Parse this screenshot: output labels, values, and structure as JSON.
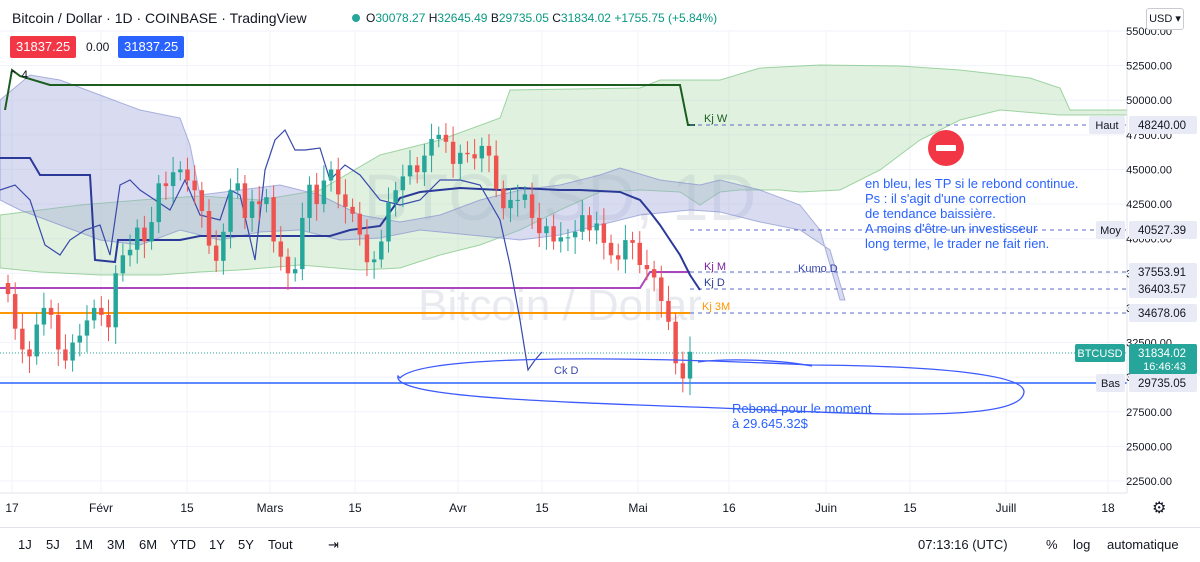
{
  "header": {
    "title": "Bitcoin / Dollar · 1D · COINBASE · TradingView",
    "ohlc": [
      {
        "label": "O",
        "value": "30078.27"
      },
      {
        "label": "H",
        "value": "32645.49"
      },
      {
        "label": "B",
        "value": "29735.05"
      },
      {
        "label": "C",
        "value": "31834.02"
      },
      {
        "label": "",
        "value": "+1755.75 (+5.84%)"
      }
    ],
    "sell_price": "31837.25",
    "spread": "0.00",
    "buy_price": "31837.25",
    "indicator_count": "4",
    "currency": "USD"
  },
  "watermark": {
    "symbol": "BTCUSD, 1D",
    "name": "Bitcoin / Dollar"
  },
  "price_axis": {
    "ticks": [
      "55000.00",
      "52500.00",
      "50000.00",
      "47500.00",
      "45000.00",
      "42500.00",
      "40000.00",
      "37500.00",
      "35000.00",
      "32500.00",
      "30000.00",
      "27500.00",
      "25000.00",
      "22500.00"
    ],
    "labels": [
      {
        "tag": "Haut",
        "value": "48240.00",
        "color": "#e8eaf6",
        "text": "#131722"
      },
      {
        "tag": "Moy",
        "value": "40527.39",
        "color": "#e8eaf6",
        "text": "#131722"
      },
      {
        "tag": "",
        "value": "37553.91",
        "color": "#e8eaf6",
        "text": "#131722"
      },
      {
        "tag": "",
        "value": "36403.57",
        "color": "#e8eaf6",
        "text": "#131722"
      },
      {
        "tag": "",
        "value": "34678.06",
        "color": "#e8eaf6",
        "text": "#131722"
      },
      {
        "tag": "BTCUSD",
        "value": "31834.02",
        "sub": "16:46:43",
        "color": "#26a69a",
        "text": "#ffffff"
      },
      {
        "tag": "Bas",
        "value": "29735.05",
        "color": "#e8eaf6",
        "text": "#131722"
      }
    ]
  },
  "time_axis": {
    "ticks": [
      "17",
      "Févr",
      "15",
      "Mars",
      "15",
      "Avr",
      "15",
      "Mai",
      "16",
      "Juin",
      "15",
      "Juill",
      "18"
    ]
  },
  "annotations": {
    "kj_w": "Kj W",
    "kj_m": "Kj M",
    "kj_d": "Kj D",
    "kj_3m": "Kj 3M",
    "kumo_d": "Kumo D",
    "ck_d": "Ck D",
    "note_main": "en bleu, les TP si le rebond continue.\nPs : il s'agit d'une correction\nde tendance baissière.\nA moins d'être un investisseur\nlong terme, le trader ne fait rien.",
    "note_rebound": "Rebond pour le moment\nà 29.645.32$"
  },
  "bottom_bar": {
    "timeframes": [
      "1J",
      "5J",
      "1M",
      "3M",
      "6M",
      "YTD",
      "1Y",
      "5Y",
      "Tout"
    ],
    "clock": "07:13:16 (UTC)",
    "percent": "%",
    "log": "log",
    "auto": "automatique"
  },
  "colors": {
    "up": "#26a69a",
    "down": "#ef5350",
    "kijun_blue": "#2b3a99",
    "kj_w": "#1b5e20",
    "kj_m": "#ab47bc",
    "kj_3m": "#ff9800",
    "bottom_line": "#2962ff",
    "cloud_green": "#a5d6a7",
    "cloud_blue": "#9fa8da"
  },
  "chart_data": {
    "type": "candlestick",
    "symbol": "BTCUSD",
    "timeframe": "1D",
    "ylim": [
      22500,
      55000
    ],
    "horizontal_levels": {
      "Haut": 48240.0,
      "Moy": 40527.39,
      "Kj M": 37553.91,
      "Kj D": 36403.57,
      "Kj 3M": 34678.06,
      "Last": 31834.02,
      "Bas": 29735.05
    },
    "closes": [
      36000,
      33500,
      32000,
      31500,
      33800,
      35000,
      34500,
      32000,
      31200,
      32500,
      33000,
      34100,
      35000,
      34500,
      33600,
      37500,
      38800,
      39200,
      40800,
      39800,
      41200,
      44000,
      43800,
      44800,
      45000,
      44200,
      43500,
      42000,
      39500,
      38400,
      40500,
      43500,
      44000,
      41500,
      42700,
      42500,
      43000,
      39800,
      38700,
      37500,
      37800,
      41500,
      43900,
      42500,
      44200,
      45000,
      43200,
      42300,
      41800,
      40300,
      38300,
      38500,
      39800,
      42600,
      43500,
      44500,
      45300,
      44800,
      46000,
      47200,
      47500,
      47000,
      45400,
      46200,
      46100,
      45800,
      46700,
      46000,
      43600,
      42200,
      42800,
      42800,
      43200,
      41500,
      40400,
      40900,
      39800,
      40100,
      40100,
      40500,
      41700,
      40600,
      41100,
      39700,
      38800,
      38500,
      39900,
      39700,
      38100,
      37800,
      37200,
      35500,
      34000,
      31000,
      29900,
      31834
    ]
  }
}
